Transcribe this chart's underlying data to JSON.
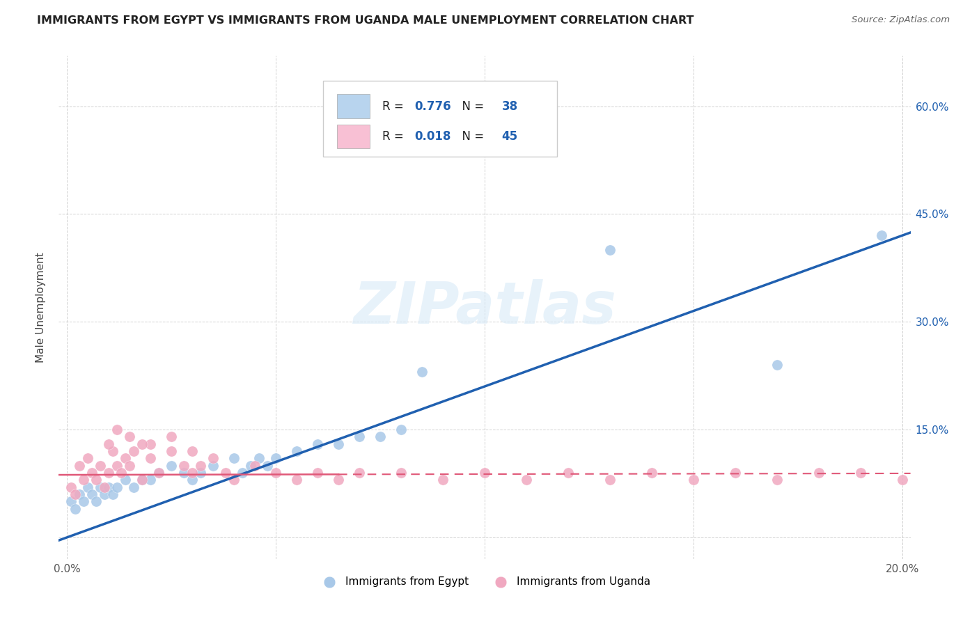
{
  "title": "IMMIGRANTS FROM EGYPT VS IMMIGRANTS FROM UGANDA MALE UNEMPLOYMENT CORRELATION CHART",
  "source": "Source: ZipAtlas.com",
  "ylabel": "Male Unemployment",
  "xlim": [
    -0.002,
    0.202
  ],
  "ylim": [
    -0.03,
    0.67
  ],
  "yticks": [
    0.0,
    0.15,
    0.3,
    0.45,
    0.6
  ],
  "xticks": [
    0.0,
    0.05,
    0.1,
    0.15,
    0.2
  ],
  "xtick_labels": [
    "0.0%",
    "",
    "",
    "",
    "20.0%"
  ],
  "ytick_labels_right": [
    "",
    "15.0%",
    "30.0%",
    "45.0%",
    "60.0%"
  ],
  "egypt_scatter_color": "#a8c8e8",
  "uganda_scatter_color": "#f0a8c0",
  "line_egypt_color": "#2060b0",
  "line_uganda_color": "#e05878",
  "watermark": "ZIPatlas",
  "legend_egypt_label": "Immigrants from Egypt",
  "legend_uganda_label": "Immigrants from Uganda",
  "R_egypt": "0.776",
  "N_egypt": "38",
  "R_uganda": "0.018",
  "N_uganda": "45",
  "egypt_color_patch": "#b8d4ee",
  "uganda_color_patch": "#f8c0d4",
  "egypt_x": [
    0.001,
    0.002,
    0.003,
    0.004,
    0.005,
    0.006,
    0.007,
    0.008,
    0.009,
    0.01,
    0.011,
    0.012,
    0.014,
    0.016,
    0.018,
    0.02,
    0.022,
    0.025,
    0.028,
    0.03,
    0.032,
    0.035,
    0.04,
    0.042,
    0.044,
    0.046,
    0.048,
    0.05,
    0.055,
    0.06,
    0.065,
    0.07,
    0.075,
    0.08,
    0.085,
    0.13,
    0.17,
    0.195
  ],
  "egypt_y": [
    0.05,
    0.04,
    0.06,
    0.05,
    0.07,
    0.06,
    0.05,
    0.07,
    0.06,
    0.07,
    0.06,
    0.07,
    0.08,
    0.07,
    0.08,
    0.08,
    0.09,
    0.1,
    0.09,
    0.08,
    0.09,
    0.1,
    0.11,
    0.09,
    0.1,
    0.11,
    0.1,
    0.11,
    0.12,
    0.13,
    0.13,
    0.14,
    0.14,
    0.15,
    0.23,
    0.4,
    0.24,
    0.42
  ],
  "uganda_x": [
    0.001,
    0.002,
    0.003,
    0.004,
    0.005,
    0.006,
    0.007,
    0.008,
    0.009,
    0.01,
    0.011,
    0.012,
    0.013,
    0.014,
    0.015,
    0.016,
    0.018,
    0.02,
    0.022,
    0.025,
    0.028,
    0.03,
    0.032,
    0.035,
    0.038,
    0.04,
    0.045,
    0.05,
    0.055,
    0.06,
    0.065,
    0.07,
    0.08,
    0.09,
    0.1,
    0.11,
    0.12,
    0.13,
    0.14,
    0.15,
    0.16,
    0.17,
    0.18,
    0.19,
    0.2
  ],
  "uganda_y": [
    0.07,
    0.06,
    0.1,
    0.08,
    0.11,
    0.09,
    0.08,
    0.1,
    0.07,
    0.09,
    0.12,
    0.1,
    0.09,
    0.11,
    0.1,
    0.12,
    0.08,
    0.11,
    0.09,
    0.12,
    0.1,
    0.09,
    0.1,
    0.11,
    0.09,
    0.08,
    0.1,
    0.09,
    0.08,
    0.09,
    0.08,
    0.09,
    0.09,
    0.08,
    0.09,
    0.08,
    0.09,
    0.08,
    0.09,
    0.08,
    0.09,
    0.08,
    0.09,
    0.09,
    0.08
  ],
  "uganda_x_extra": [
    0.01,
    0.015,
    0.02,
    0.025,
    0.03,
    0.012,
    0.018
  ],
  "uganda_y_extra": [
    0.13,
    0.14,
    0.13,
    0.14,
    0.12,
    0.15,
    0.13
  ]
}
